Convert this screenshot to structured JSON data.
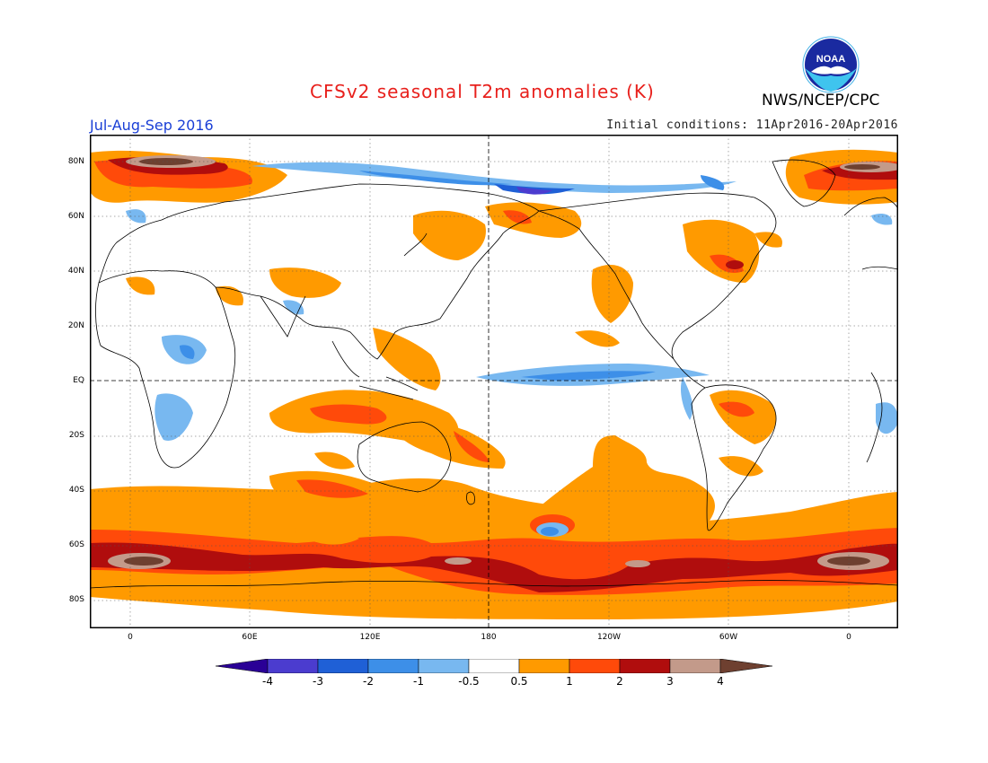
{
  "header": {
    "title": "CFSv2 seasonal T2m anomalies (K)",
    "agency": "NWS/NCEP/CPC",
    "period": "Jul-Aug-Sep 2016",
    "initial_conditions": "Initial conditions: 11Apr2016-20Apr2016",
    "logo_text": "NOAA"
  },
  "map": {
    "lat_labels": [
      "80N",
      "60N",
      "40N",
      "20N",
      "EQ",
      "20S",
      "40S",
      "60S",
      "80S"
    ],
    "lon_labels": [
      "0",
      "60E",
      "120E",
      "180",
      "120W",
      "60W",
      "0"
    ]
  },
  "colorbar": {
    "labels": [
      "-4",
      "-3",
      "-2",
      "-1",
      "-0.5",
      "0.5",
      "1",
      "2",
      "3",
      "4"
    ],
    "colors": {
      "lt_-4": "#2a0096",
      "n4_n3": "#4b3ccf",
      "n3_n2": "#1f60d6",
      "n2_n1": "#3d8fe8",
      "n1_n05": "#78b8f0",
      "n05_05": "#ffffff",
      "p05_1": "#ff9a00",
      "p1_2": "#ff4a0a",
      "p2_3": "#b00d0d",
      "p3_4": "#c39a8a",
      "gt_4": "#6e4030"
    }
  }
}
